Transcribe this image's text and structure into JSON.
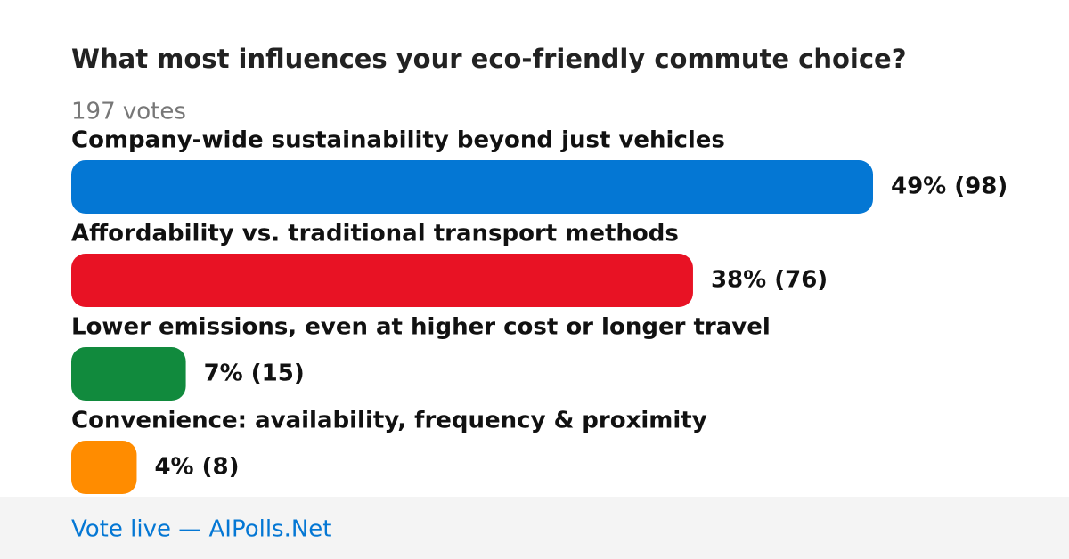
{
  "chart_data": {
    "type": "bar",
    "orientation": "horizontal",
    "title": "What most influences your eco-friendly commute choice?",
    "subtitle": "197 votes",
    "categories": [
      "Company-wide sustainability beyond just vehicles",
      "Affordability vs. traditional transport methods",
      "Lower emissions, even at higher cost or longer travel",
      "Convenience: availability, frequency & proximity"
    ],
    "values": [
      49,
      38,
      7,
      4
    ],
    "value_labels": [
      "49% (98)",
      "38% (76)",
      "7% (15)",
      "4% (8)"
    ],
    "colors": [
      "#0477d4",
      "#e81224",
      "#118a3d",
      "#ff8c00"
    ],
    "footer": "Vote live — AIPolls.Net"
  }
}
